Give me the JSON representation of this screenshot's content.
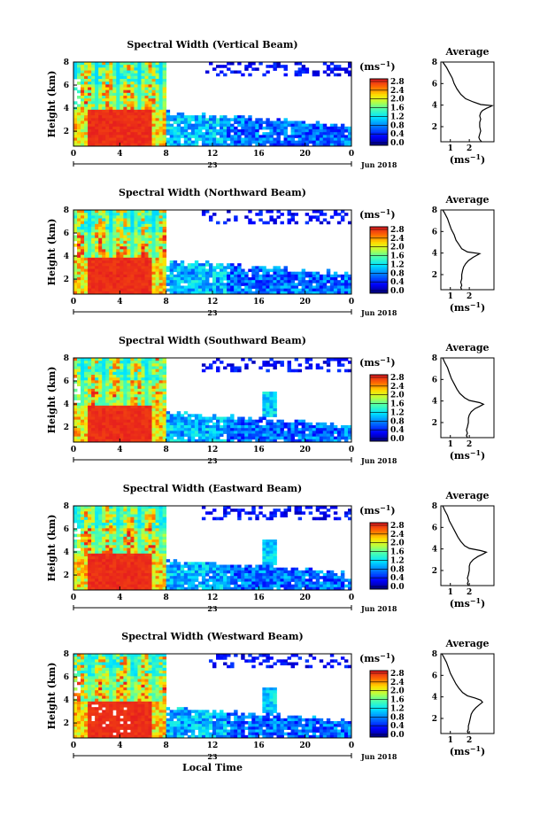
{
  "chart_data": [
    {
      "type": "heatmap",
      "title": "Spectral Width (Vertical Beam)",
      "ylabel": "Height (km)",
      "x_ticks": [
        "0",
        "4",
        "8",
        "12",
        "16",
        "20",
        "0"
      ],
      "y_ticks": [
        "2",
        "4",
        "6",
        "8"
      ],
      "date_label": "23",
      "month_label": "Jun 2018",
      "colorbar": {
        "unit": "(ms",
        "unit_sup": "−1",
        "unit_close": ")",
        "ticks": [
          "0.0",
          "0.4",
          "0.8",
          "1.2",
          "1.6",
          "2.0",
          "2.4",
          "2.8"
        ]
      },
      "avg": {
        "title": "Average",
        "x_ticks": [
          "1",
          "2"
        ],
        "y_ticks": [
          "2",
          "4",
          "6",
          "8"
        ],
        "xlabel": "(ms",
        "xlabel_sup": "−1",
        "xlabel_close": ")",
        "profile": [
          [
            0.6,
            2.65
          ],
          [
            0.8,
            2.55
          ],
          [
            1.0,
            2.5
          ],
          [
            1.3,
            2.55
          ],
          [
            1.6,
            2.6
          ],
          [
            2.0,
            2.55
          ],
          [
            2.4,
            2.55
          ],
          [
            2.7,
            2.6
          ],
          [
            3.0,
            2.55
          ],
          [
            3.3,
            2.6
          ],
          [
            3.5,
            2.7
          ],
          [
            3.7,
            2.9
          ],
          [
            3.85,
            3.1
          ],
          [
            3.95,
            3.2
          ],
          [
            4.05,
            2.6
          ],
          [
            4.3,
            2.2
          ],
          [
            4.6,
            1.8
          ],
          [
            5.0,
            1.55
          ],
          [
            5.5,
            1.35
          ],
          [
            6.0,
            1.2
          ],
          [
            6.5,
            1.1
          ],
          [
            7.0,
            0.95
          ],
          [
            7.5,
            0.8
          ],
          [
            8.0,
            0.6
          ]
        ]
      }
    },
    {
      "type": "heatmap",
      "title": "Spectral Width (Northward Beam)",
      "ylabel": "Height (km)",
      "x_ticks": [
        "0",
        "4",
        "8",
        "12",
        "16",
        "20",
        "0"
      ],
      "y_ticks": [
        "2",
        "4",
        "6",
        "8"
      ],
      "date_label": "23",
      "month_label": "Jun 2018",
      "colorbar": {
        "unit": "(ms",
        "unit_sup": "−1",
        "unit_close": ")",
        "ticks": [
          "0.0",
          "0.4",
          "0.8",
          "1.2",
          "1.6",
          "2.0",
          "2.4",
          "2.8"
        ]
      },
      "avg": {
        "title": "Average",
        "x_ticks": [
          "1",
          "2"
        ],
        "y_ticks": [
          "2",
          "4",
          "6",
          "8"
        ],
        "xlabel": "(ms",
        "xlabel_sup": "−1",
        "xlabel_close": ")",
        "profile": [
          [
            0.6,
            1.6
          ],
          [
            0.8,
            1.55
          ],
          [
            1.0,
            1.6
          ],
          [
            1.3,
            1.55
          ],
          [
            1.6,
            1.6
          ],
          [
            2.0,
            1.6
          ],
          [
            2.4,
            1.65
          ],
          [
            2.7,
            1.7
          ],
          [
            3.0,
            1.8
          ],
          [
            3.3,
            1.95
          ],
          [
            3.6,
            2.2
          ],
          [
            3.8,
            2.4
          ],
          [
            3.95,
            2.55
          ],
          [
            4.1,
            1.9
          ],
          [
            4.4,
            1.6
          ],
          [
            4.8,
            1.45
          ],
          [
            5.2,
            1.3
          ],
          [
            5.7,
            1.2
          ],
          [
            6.2,
            1.05
          ],
          [
            6.7,
            0.95
          ],
          [
            7.2,
            0.85
          ],
          [
            7.7,
            0.7
          ],
          [
            8.0,
            0.6
          ]
        ]
      }
    },
    {
      "type": "heatmap",
      "title": "Spectral Width (Southward Beam)",
      "ylabel": "Height (km)",
      "x_ticks": [
        "0",
        "4",
        "8",
        "12",
        "16",
        "20",
        "0"
      ],
      "y_ticks": [
        "2",
        "4",
        "6",
        "8"
      ],
      "date_label": "23",
      "month_label": "Jun 2018",
      "colorbar": {
        "unit": "(ms",
        "unit_sup": "−1",
        "unit_close": ")",
        "ticks": [
          "0.0",
          "0.4",
          "0.8",
          "1.2",
          "1.6",
          "2.0",
          "2.4",
          "2.8"
        ]
      },
      "avg": {
        "title": "Average",
        "x_ticks": [
          "1",
          "2"
        ],
        "y_ticks": [
          "2",
          "4",
          "6",
          "8"
        ],
        "xlabel": "(ms",
        "xlabel_sup": "−1",
        "xlabel_close": ")",
        "profile": [
          [
            0.6,
            1.9
          ],
          [
            0.8,
            1.85
          ],
          [
            1.0,
            1.9
          ],
          [
            1.3,
            1.85
          ],
          [
            1.6,
            1.9
          ],
          [
            2.0,
            1.95
          ],
          [
            2.4,
            1.95
          ],
          [
            2.7,
            2.0
          ],
          [
            3.0,
            2.1
          ],
          [
            3.3,
            2.3
          ],
          [
            3.5,
            2.55
          ],
          [
            3.7,
            2.75
          ],
          [
            3.85,
            2.55
          ],
          [
            4.05,
            2.0
          ],
          [
            4.3,
            1.75
          ],
          [
            4.7,
            1.5
          ],
          [
            5.1,
            1.35
          ],
          [
            5.6,
            1.2
          ],
          [
            6.1,
            1.05
          ],
          [
            6.6,
            0.95
          ],
          [
            7.1,
            0.85
          ],
          [
            7.6,
            0.7
          ],
          [
            8.0,
            0.6
          ]
        ]
      }
    },
    {
      "type": "heatmap",
      "title": "Spectral Width (Eastward Beam)",
      "ylabel": "Height (km)",
      "x_ticks": [
        "0",
        "4",
        "8",
        "12",
        "16",
        "20",
        "0"
      ],
      "y_ticks": [
        "2",
        "4",
        "6",
        "8"
      ],
      "date_label": "23",
      "month_label": "Jun 2018",
      "colorbar": {
        "unit": "(ms",
        "unit_sup": "−1",
        "unit_close": ")",
        "ticks": [
          "0.0",
          "0.4",
          "0.8",
          "1.2",
          "1.6",
          "2.0",
          "2.4",
          "2.8"
        ]
      },
      "avg": {
        "title": "Average",
        "x_ticks": [
          "1",
          "2"
        ],
        "y_ticks": [
          "2",
          "4",
          "6",
          "8"
        ],
        "xlabel": "(ms",
        "xlabel_sup": "−1",
        "xlabel_close": ")",
        "profile": [
          [
            0.6,
            1.95
          ],
          [
            0.8,
            1.9
          ],
          [
            1.0,
            1.95
          ],
          [
            1.3,
            1.9
          ],
          [
            1.6,
            1.95
          ],
          [
            2.0,
            2.0
          ],
          [
            2.4,
            2.0
          ],
          [
            2.7,
            2.05
          ],
          [
            3.0,
            2.2
          ],
          [
            3.3,
            2.45
          ],
          [
            3.5,
            2.7
          ],
          [
            3.7,
            2.9
          ],
          [
            3.85,
            2.6
          ],
          [
            4.05,
            2.0
          ],
          [
            4.3,
            1.75
          ],
          [
            4.7,
            1.55
          ],
          [
            5.1,
            1.4
          ],
          [
            5.6,
            1.25
          ],
          [
            6.1,
            1.1
          ],
          [
            6.6,
            0.95
          ],
          [
            7.1,
            0.85
          ],
          [
            7.6,
            0.7
          ],
          [
            8.0,
            0.6
          ]
        ]
      }
    },
    {
      "type": "heatmap",
      "title": "Spectral Width (Westward Beam)",
      "ylabel": "Height (km)",
      "x_ticks": [
        "0",
        "4",
        "8",
        "12",
        "16",
        "20",
        "0"
      ],
      "y_ticks": [
        "2",
        "4",
        "6",
        "8"
      ],
      "date_label": "23",
      "month_label": "Jun 2018",
      "xlabel": "Local Time",
      "colorbar": {
        "unit": "(ms",
        "unit_sup": "−1",
        "unit_close": ")",
        "ticks": [
          "0.0",
          "0.4",
          "0.8",
          "1.2",
          "1.6",
          "2.0",
          "2.4",
          "2.8"
        ]
      },
      "avg": {
        "title": "Average",
        "x_ticks": [
          "1",
          "2"
        ],
        "y_ticks": [
          "2",
          "4",
          "6",
          "8"
        ],
        "xlabel": "(ms",
        "xlabel_sup": "−1",
        "xlabel_close": ")",
        "profile": [
          [
            0.6,
            1.95
          ],
          [
            0.8,
            1.9
          ],
          [
            1.0,
            1.95
          ],
          [
            1.3,
            1.95
          ],
          [
            1.6,
            2.0
          ],
          [
            2.0,
            2.05
          ],
          [
            2.4,
            2.1
          ],
          [
            2.7,
            2.2
          ],
          [
            3.0,
            2.35
          ],
          [
            3.3,
            2.55
          ],
          [
            3.5,
            2.7
          ],
          [
            3.7,
            2.6
          ],
          [
            3.9,
            2.3
          ],
          [
            4.1,
            1.9
          ],
          [
            4.4,
            1.65
          ],
          [
            4.8,
            1.45
          ],
          [
            5.2,
            1.3
          ],
          [
            5.7,
            1.15
          ],
          [
            6.2,
            1.0
          ],
          [
            6.7,
            0.9
          ],
          [
            7.2,
            0.8
          ],
          [
            7.7,
            0.65
          ],
          [
            8.0,
            0.55
          ]
        ]
      }
    }
  ]
}
